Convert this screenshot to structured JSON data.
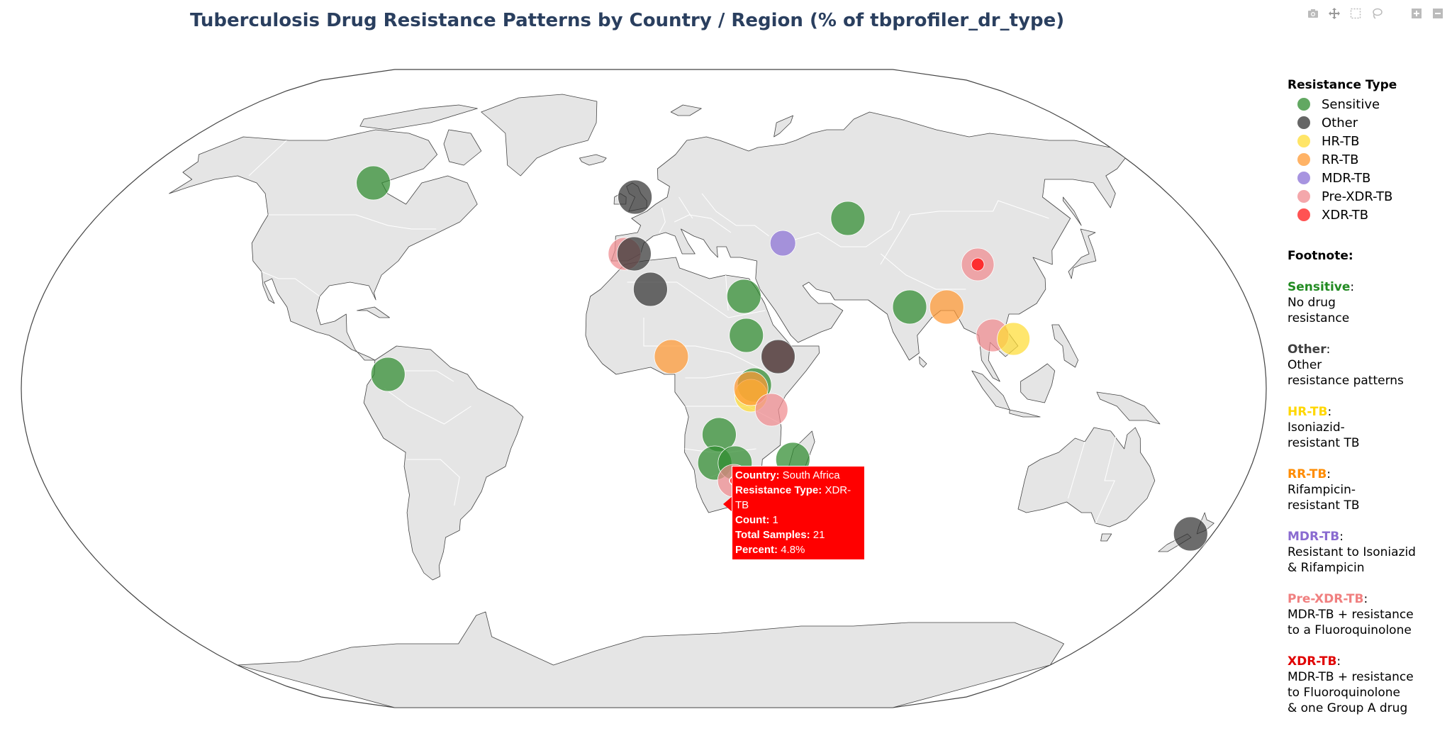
{
  "title": "Tuberculosis Drug Resistance Patterns by Country / Region (% of tbprofiler_dr_type)",
  "modebar": [
    "camera-icon",
    "pan-icon",
    "box-select-icon",
    "lasso-icon",
    "zoom-in-icon",
    "zoom-out-icon"
  ],
  "colors": {
    "land": "#e5e5e5",
    "border": "#ffffff",
    "coast": "#444444",
    "Sensitive": "#2e8b2e",
    "Other": "#333333",
    "HR-TB": "#ffdc34",
    "RR-TB": "#ff9933",
    "MDR-TB": "#8a70d6",
    "Pre-XDR-TB": "#f08a8f",
    "XDR-TB": "#ff1a1a"
  },
  "legend": {
    "title": "Resistance Type",
    "items": [
      "Sensitive",
      "Other",
      "HR-TB",
      "RR-TB",
      "MDR-TB",
      "Pre-XDR-TB",
      "XDR-TB"
    ]
  },
  "footnote": {
    "title": "Footnote:",
    "entries": [
      {
        "name": "Sensitive",
        "color": "#228b22",
        "desc": "No drug\nresistance"
      },
      {
        "name": "Other",
        "color": "#404040",
        "desc": "Other\nresistance patterns"
      },
      {
        "name": "HR-TB",
        "color": "#ffd700",
        "desc": "Isoniazid-\nresistant TB"
      },
      {
        "name": "RR-TB",
        "color": "#ff8c00",
        "desc": "Rifampicin-\nresistant TB"
      },
      {
        "name": "MDR-TB",
        "color": "#8a6bd0",
        "desc": "Resistant to Isoniazid\n& Rifampicin"
      },
      {
        "name": "Pre-XDR-TB",
        "color": "#f08080",
        "desc": "MDR-TB + resistance\nto a Fluoroquinolone"
      },
      {
        "name": "XDR-TB",
        "color": "#e00000",
        "desc": "MDR-TB + resistance\nto Fluoroquinolone\n& one Group A drug"
      }
    ]
  },
  "points": [
    {
      "type": "Sensitive",
      "lon": -95,
      "lat": 58
    },
    {
      "type": "Other",
      "lon": -3,
      "lat": 54
    },
    {
      "type": "Pre-XDR-TB",
      "lon": -6,
      "lat": 38
    },
    {
      "type": "Other",
      "lon": -3,
      "lat": 38
    },
    {
      "type": "MDR-TB",
      "lon": 44,
      "lat": 41
    },
    {
      "type": "Sensitive",
      "lon": 67,
      "lat": 48
    },
    {
      "type": "Pre-XDR-TB",
      "lon": 103,
      "lat": 35
    },
    {
      "type": "XDR-TB",
      "lon": 103,
      "lat": 35
    },
    {
      "type": "Sensitive",
      "lon": 79,
      "lat": 23
    },
    {
      "type": "RR-TB",
      "lon": 90,
      "lat": 23
    },
    {
      "type": "Pre-XDR-TB",
      "lon": 102,
      "lat": 15
    },
    {
      "type": "HR-TB",
      "lon": 108,
      "lat": 14
    },
    {
      "type": "Other",
      "lon": 2,
      "lat": 28
    },
    {
      "type": "Sensitive",
      "lon": 30,
      "lat": 26
    },
    {
      "type": "Sensitive",
      "lon": 30,
      "lat": 15
    },
    {
      "type": "Pre-XDR-TB",
      "lon": 39,
      "lat": 9
    },
    {
      "type": "Other",
      "lon": 39,
      "lat": 9
    },
    {
      "type": "RR-TB",
      "lon": 8,
      "lat": 9
    },
    {
      "type": "Sensitive",
      "lon": 32,
      "lat": 1
    },
    {
      "type": "HR-TB",
      "lon": 31,
      "lat": -2
    },
    {
      "type": "RR-TB",
      "lon": 31,
      "lat": 0
    },
    {
      "type": "Pre-XDR-TB",
      "lon": 37,
      "lat": -6
    },
    {
      "type": "Sensitive",
      "lon": 22,
      "lat": -13
    },
    {
      "type": "Sensitive",
      "lon": 44,
      "lat": -20
    },
    {
      "type": "Sensitive",
      "lon": 21,
      "lat": -21
    },
    {
      "type": "Sensitive",
      "lon": 27,
      "lat": -21
    },
    {
      "type": "Pre-XDR-TB",
      "lon": 27,
      "lat": -26
    },
    {
      "type": "Sensitive",
      "lon": -74,
      "lat": 4
    },
    {
      "type": "Other",
      "lon": 173,
      "lat": -41
    }
  ],
  "tooltip": {
    "rows": [
      {
        "k": "Country:",
        "v": "South Africa"
      },
      {
        "k": "Resistance Type:",
        "v": "XDR-TB"
      },
      {
        "k": "Count:",
        "v": "1"
      },
      {
        "k": "Total Samples:",
        "v": "21"
      },
      {
        "k": "Percent:",
        "v": "4.8%"
      }
    ]
  }
}
